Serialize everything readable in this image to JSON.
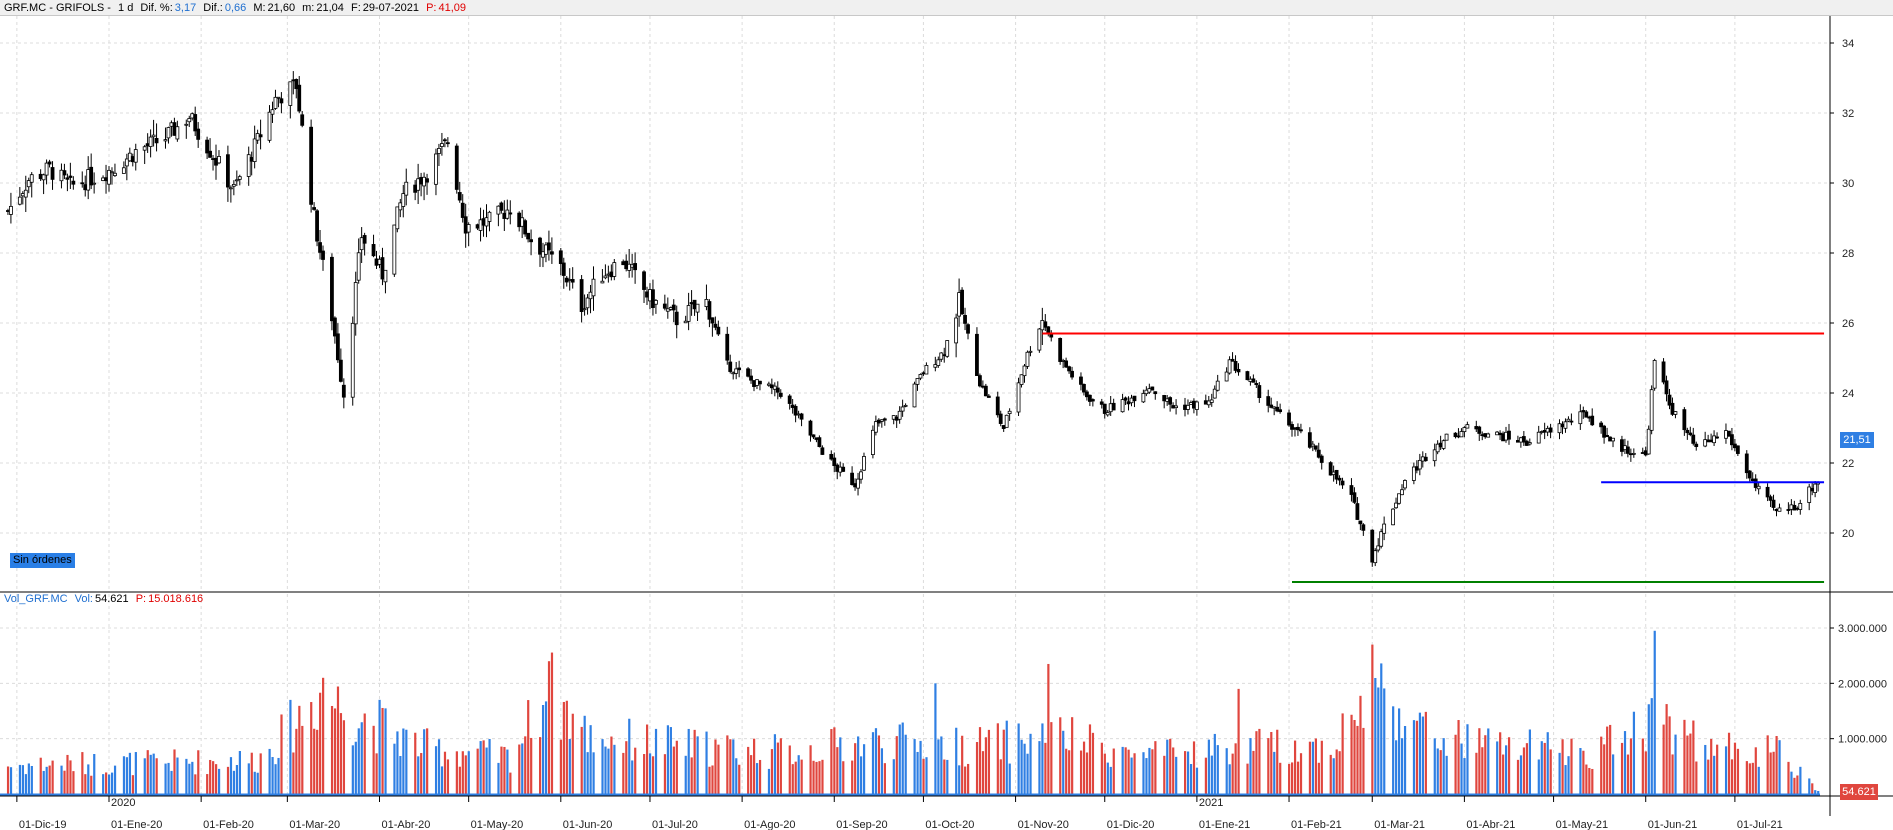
{
  "header": {
    "symbol": "GRF.MC - GRIFOLS -",
    "period": "1 d",
    "dif_pct_label": "Dif. %:",
    "dif_pct": "3,17",
    "dif_label": "Dif.:",
    "dif": "0,66",
    "max_label": "M:",
    "max": "21,60",
    "min_label": "m:",
    "min": "21,04",
    "date_label": "F:",
    "date": "29-07-2021",
    "p_label": "P:",
    "p": "41,09"
  },
  "orders_label": "Sin órdenes",
  "volume_header": {
    "name": "Vol_GRF.MC",
    "vol_label": "Vol:",
    "vol": "54.621",
    "p_label": "P:",
    "p": "15.018.616"
  },
  "price_marker": "21,51",
  "volume_marker": "54.621",
  "colors": {
    "up": "#2f7fe3",
    "down": "#e0463e",
    "candle": "#000000",
    "resistance": "#ff0000",
    "support_mid": "#0000ff",
    "support_low": "#008000",
    "grid": "#dcdcdc"
  },
  "chart_data": [
    {
      "type": "candlestick",
      "y_ticks": [
        "34",
        "32",
        "30",
        "28",
        "26",
        "24",
        "22",
        "20"
      ],
      "ylim": [
        18.4,
        34.6
      ],
      "x_labels": [
        "01-Dic-19",
        "01-Ene-20",
        "01-Feb-20",
        "01-Mar-20",
        "01-Abr-20",
        "01-May-20",
        "01-Jun-20",
        "01-Jul-20",
        "01-Ago-20",
        "01-Sep-20",
        "01-Oct-20",
        "01-Nov-20",
        "01-Dic-20",
        "01-Ene-21",
        "01-Feb-21",
        "01-Mar-21",
        "01-Abr-21",
        "01-May-21",
        "01-Jun-21",
        "01-Jul-21"
      ],
      "year_labels": [
        "2020",
        "2021"
      ],
      "close_path": [
        [
          "2019-11-28",
          29.2
        ],
        [
          "2019-12-05",
          30.1
        ],
        [
          "2019-12-12",
          30.4
        ],
        [
          "2019-12-19",
          29.9
        ],
        [
          "2020-01-02",
          30.4
        ],
        [
          "2020-01-10",
          30.9
        ],
        [
          "2020-01-20",
          31.3
        ],
        [
          "2020-01-28",
          31.9
        ],
        [
          "2020-02-05",
          30.8
        ],
        [
          "2020-02-12",
          29.8
        ],
        [
          "2020-02-20",
          31.2
        ],
        [
          "2020-02-26",
          32.4
        ],
        [
          "2020-03-04",
          32.8
        ],
        [
          "2020-03-10",
          29.0
        ],
        [
          "2020-03-16",
          26.2
        ],
        [
          "2020-03-20",
          24.0
        ],
        [
          "2020-03-26",
          28.5
        ],
        [
          "2020-04-02",
          27.4
        ],
        [
          "2020-04-09",
          29.7
        ],
        [
          "2020-04-17",
          30.3
        ],
        [
          "2020-04-24",
          31.2
        ],
        [
          "2020-04-30",
          28.8
        ],
        [
          "2020-05-08",
          28.9
        ],
        [
          "2020-05-15",
          29.3
        ],
        [
          "2020-05-22",
          28.4
        ],
        [
          "2020-06-01",
          27.6
        ],
        [
          "2020-06-08",
          26.5
        ],
        [
          "2020-06-15",
          27.4
        ],
        [
          "2020-06-22",
          27.8
        ],
        [
          "2020-07-01",
          26.7
        ],
        [
          "2020-07-10",
          26.1
        ],
        [
          "2020-07-20",
          26.6
        ],
        [
          "2020-07-27",
          24.8
        ],
        [
          "2020-08-05",
          24.3
        ],
        [
          "2020-08-14",
          24.0
        ],
        [
          "2020-08-24",
          22.8
        ],
        [
          "2020-09-01",
          21.9
        ],
        [
          "2020-09-08",
          21.4
        ],
        [
          "2020-09-15",
          23.1
        ],
        [
          "2020-09-22",
          23.3
        ],
        [
          "2020-10-01",
          24.6
        ],
        [
          "2020-10-08",
          25.2
        ],
        [
          "2020-10-13",
          26.6
        ],
        [
          "2020-10-20",
          24.3
        ],
        [
          "2020-10-28",
          23.0
        ],
        [
          "2020-11-05",
          25.1
        ],
        [
          "2020-11-10",
          26.1
        ],
        [
          "2020-11-16",
          25.0
        ],
        [
          "2020-11-24",
          24.0
        ],
        [
          "2020-12-01",
          23.5
        ],
        [
          "2020-12-09",
          23.8
        ],
        [
          "2020-12-16",
          24.2
        ],
        [
          "2020-12-24",
          23.6
        ],
        [
          "2021-01-05",
          23.7
        ],
        [
          "2021-01-12",
          24.9
        ],
        [
          "2021-01-19",
          24.3
        ],
        [
          "2021-01-27",
          23.5
        ],
        [
          "2021-02-05",
          22.8
        ],
        [
          "2021-02-12",
          22.1
        ],
        [
          "2021-02-22",
          21.0
        ],
        [
          "2021-03-01",
          19.3
        ],
        [
          "2021-03-05",
          20.2
        ],
        [
          "2021-03-12",
          21.5
        ],
        [
          "2021-03-22",
          22.5
        ],
        [
          "2021-04-01",
          23.0
        ],
        [
          "2021-04-12",
          22.8
        ],
        [
          "2021-04-22",
          22.6
        ],
        [
          "2021-05-01",
          23.0
        ],
        [
          "2021-05-12",
          23.4
        ],
        [
          "2021-05-22",
          22.5
        ],
        [
          "2021-06-01",
          22.2
        ],
        [
          "2021-06-04",
          24.9
        ],
        [
          "2021-06-10",
          23.5
        ],
        [
          "2021-06-18",
          22.4
        ],
        [
          "2021-06-28",
          22.9
        ],
        [
          "2021-07-08",
          21.3
        ],
        [
          "2021-07-15",
          20.6
        ],
        [
          "2021-07-22",
          20.8
        ],
        [
          "2021-07-29",
          21.51
        ]
      ],
      "horizontal_lines": [
        {
          "y": 25.7,
          "from": "2020-11-10",
          "to": "2021-07-31",
          "color": "red"
        },
        {
          "y": 21.45,
          "from": "2021-05-17",
          "to": "2021-07-31",
          "color": "blue"
        },
        {
          "y": 18.6,
          "from": "2021-02-02",
          "to": "2021-07-31",
          "color": "green"
        }
      ]
    },
    {
      "type": "bar",
      "y_ticks": [
        "3.000.000",
        "2.000.000",
        "1.000.000"
      ],
      "ylim": [
        0,
        3000000
      ],
      "volume_profile": [
        [
          "2019-11-28",
          550000
        ],
        [
          "2020-01-15",
          600000
        ],
        [
          "2020-02-20",
          650000
        ],
        [
          "2020-03-01",
          1200000
        ],
        [
          "2020-03-12",
          1900000
        ],
        [
          "2020-03-25",
          1500000
        ],
        [
          "2020-04-15",
          900000
        ],
        [
          "2020-05-15",
          700000
        ],
        [
          "2020-05-28",
          2000000
        ],
        [
          "2020-06-10",
          1100000
        ],
        [
          "2020-07-15",
          900000
        ],
        [
          "2020-08-15",
          800000
        ],
        [
          "2020-09-15",
          1000000
        ],
        [
          "2020-10-15",
          900000
        ],
        [
          "2020-11-15",
          1100000
        ],
        [
          "2020-12-15",
          700000
        ],
        [
          "2021-01-15",
          900000
        ],
        [
          "2021-02-15",
          900000
        ],
        [
          "2021-03-03",
          2000000
        ],
        [
          "2021-03-20",
          1100000
        ],
        [
          "2021-04-15",
          900000
        ],
        [
          "2021-05-15",
          800000
        ],
        [
          "2021-06-04",
          1500000
        ],
        [
          "2021-06-20",
          900000
        ],
        [
          "2021-07-15",
          800000
        ],
        [
          "2021-07-29",
          54621
        ]
      ],
      "spikes": [
        [
          "2020-05-28",
          2400000
        ],
        [
          "2020-11-12",
          2350000
        ],
        [
          "2021-03-01",
          2700000
        ],
        [
          "2021-06-04",
          2950000
        ],
        [
          "2021-01-15",
          1900000
        ],
        [
          "2020-10-05",
          2000000
        ],
        [
          "2020-03-13",
          2100000
        ]
      ]
    }
  ]
}
